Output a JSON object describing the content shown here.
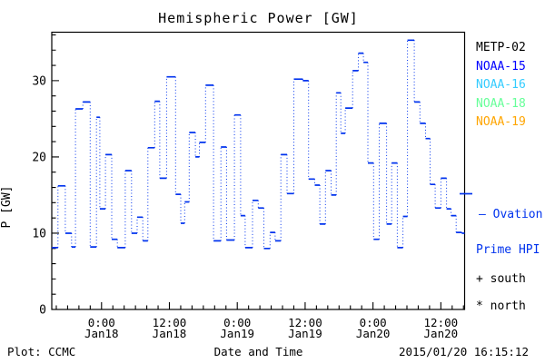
{
  "title": "Hemispheric Power [GW]",
  "footer": {
    "left": "Plot: CCMC",
    "right": "2015/01/20 16:15:12"
  },
  "legend": {
    "satellites": [
      {
        "label": "METP-02",
        "color": "#000000"
      },
      {
        "label": "NOAA-15",
        "color": "#0000FF"
      },
      {
        "label": "NOAA-16",
        "color": "#33CCFF"
      },
      {
        "label": "NOAA-18",
        "color": "#66FF99"
      },
      {
        "label": "NOAA-19",
        "color": "#FFA500"
      }
    ],
    "ovation_line1": "– Ovation",
    "ovation_line2": "Prime HPI",
    "ovation_color": "#0033EE",
    "south": "+ south",
    "north": "* north"
  },
  "chart_data": {
    "type": "line",
    "subtype": "dotted-step",
    "title": "Hemispheric Power [GW]",
    "xlabel": "Date and Time",
    "ylabel": "P [GW]",
    "series_name": "Ovation Prime HPI",
    "line_color": "#0033EE",
    "frame_color": "#000000",
    "x_start": "2015-01-17 15:00",
    "x_end": "2015-01-20 16:00",
    "x_total_hours": 73,
    "x_minor_step_hours": 2,
    "ylim": [
      0,
      36.35
    ],
    "y_major_ticks": [
      0,
      10,
      20,
      30
    ],
    "y_minor_step": 2,
    "grid": false,
    "legend_position": "right",
    "x_major_ticks": [
      {
        "t": 8.8,
        "time": "0:00",
        "date": "Jan18"
      },
      {
        "t": 20.8,
        "time": "12:00",
        "date": "Jan18"
      },
      {
        "t": 32.8,
        "time": "0:00",
        "date": "Jan19"
      },
      {
        "t": 44.8,
        "time": "12:00",
        "date": "Jan19"
      },
      {
        "t": 56.8,
        "time": "0:00",
        "date": "Jan20"
      },
      {
        "t": 68.8,
        "time": "12:00",
        "date": "Jan20"
      }
    ],
    "steps_units": "[hours_from_2015-01-17T15:00, GW]",
    "steps": [
      [
        0.0,
        8.1
      ],
      [
        1.1,
        16.2
      ],
      [
        2.4,
        10.0
      ],
      [
        3.5,
        8.2
      ],
      [
        4.2,
        26.3
      ],
      [
        5.5,
        27.2
      ],
      [
        6.8,
        8.2
      ],
      [
        7.9,
        25.2
      ],
      [
        8.5,
        13.2
      ],
      [
        9.5,
        20.3
      ],
      [
        10.6,
        9.2
      ],
      [
        11.6,
        8.1
      ],
      [
        13.0,
        18.2
      ],
      [
        14.1,
        10.0
      ],
      [
        15.1,
        12.1
      ],
      [
        16.1,
        9.0
      ],
      [
        17.0,
        21.2
      ],
      [
        18.2,
        27.3
      ],
      [
        19.1,
        17.2
      ],
      [
        20.3,
        30.5
      ],
      [
        21.9,
        15.1
      ],
      [
        22.8,
        11.3
      ],
      [
        23.5,
        14.1
      ],
      [
        24.3,
        23.2
      ],
      [
        25.4,
        20.0
      ],
      [
        26.1,
        21.9
      ],
      [
        27.2,
        29.4
      ],
      [
        28.6,
        9.0
      ],
      [
        29.9,
        21.3
      ],
      [
        30.9,
        9.1
      ],
      [
        32.3,
        25.5
      ],
      [
        33.4,
        12.3
      ],
      [
        34.2,
        8.1
      ],
      [
        35.5,
        14.3
      ],
      [
        36.5,
        13.3
      ],
      [
        37.5,
        8.0
      ],
      [
        38.6,
        10.1
      ],
      [
        39.5,
        9.0
      ],
      [
        40.5,
        20.3
      ],
      [
        41.6,
        15.2
      ],
      [
        42.8,
        30.2
      ],
      [
        44.4,
        30.0
      ],
      [
        45.4,
        17.1
      ],
      [
        46.5,
        16.3
      ],
      [
        47.4,
        11.2
      ],
      [
        48.4,
        18.2
      ],
      [
        49.4,
        15.0
      ],
      [
        50.3,
        28.4
      ],
      [
        51.1,
        23.1
      ],
      [
        51.9,
        26.4
      ],
      [
        53.2,
        31.3
      ],
      [
        54.2,
        33.6
      ],
      [
        55.1,
        32.4
      ],
      [
        55.9,
        19.2
      ],
      [
        56.9,
        9.2
      ],
      [
        57.9,
        24.4
      ],
      [
        59.2,
        11.2
      ],
      [
        60.1,
        19.2
      ],
      [
        61.1,
        8.1
      ],
      [
        62.1,
        12.2
      ],
      [
        62.9,
        35.3
      ],
      [
        64.1,
        27.2
      ],
      [
        65.1,
        24.4
      ],
      [
        66.1,
        22.4
      ],
      [
        66.9,
        16.4
      ],
      [
        67.8,
        13.3
      ],
      [
        68.8,
        17.2
      ],
      [
        69.8,
        13.2
      ],
      [
        70.6,
        12.3
      ],
      [
        71.5,
        10.1
      ],
      [
        72.5,
        10.0
      ]
    ]
  }
}
